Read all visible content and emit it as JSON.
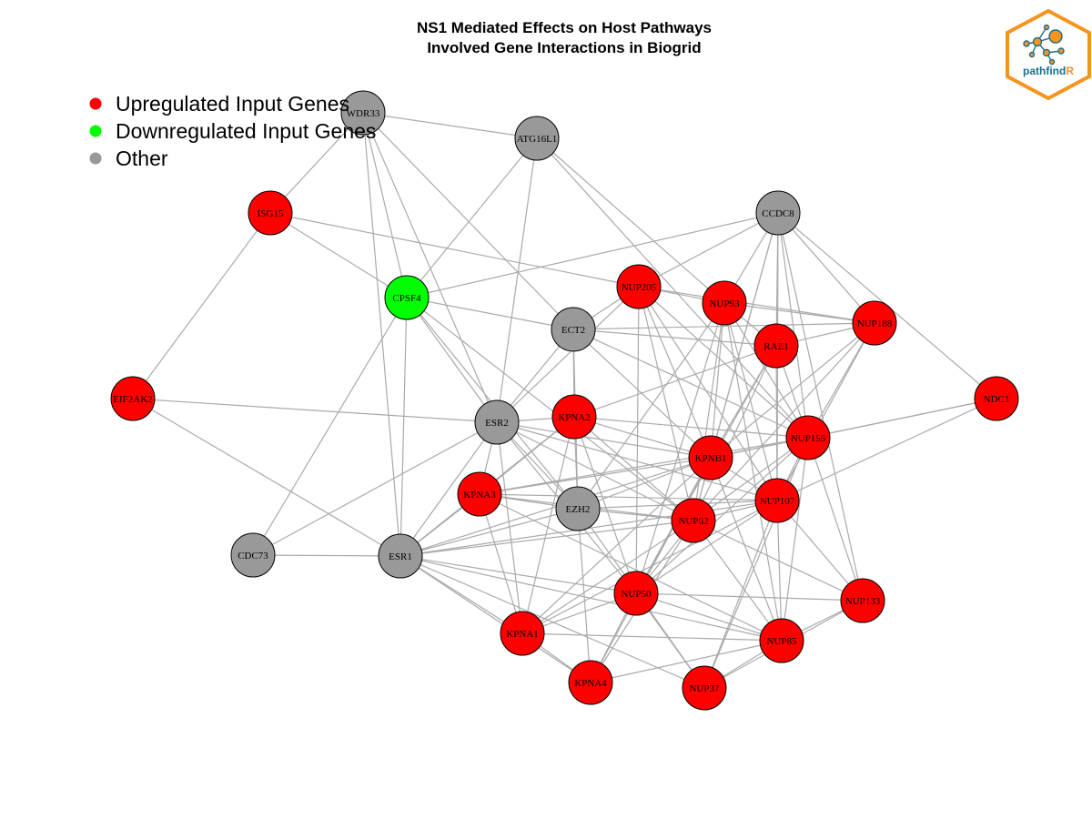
{
  "title": {
    "line1": "NS1 Mediated Effects on Host Pathways",
    "line2": "Involved Gene Interactions in Biogrid"
  },
  "legend": [
    {
      "label": "Upregulated Input Genes",
      "color": "#ff0000"
    },
    {
      "label": "Downregulated Input Genes",
      "color": "#00ff00"
    },
    {
      "label": "Other",
      "color": "#999999"
    }
  ],
  "logo": {
    "text_main": "pathfind",
    "text_accent": "R",
    "border_color": "#f7941d",
    "text_color": "#1b6e8c"
  },
  "edge_color": "#aaaaaa",
  "nodes": [
    {
      "id": "WDR33",
      "status": "other"
    },
    {
      "id": "ATG16L1",
      "status": "other"
    },
    {
      "id": "ISG15",
      "status": "up"
    },
    {
      "id": "CCDC8",
      "status": "other"
    },
    {
      "id": "CPSF4",
      "status": "down"
    },
    {
      "id": "NUP205",
      "status": "up"
    },
    {
      "id": "NUP93",
      "status": "up"
    },
    {
      "id": "NUP188",
      "status": "up"
    },
    {
      "id": "ECT2",
      "status": "other"
    },
    {
      "id": "RAE1",
      "status": "up"
    },
    {
      "id": "EIF2AK2",
      "status": "up"
    },
    {
      "id": "NDC1",
      "status": "up"
    },
    {
      "id": "ESR2",
      "status": "other"
    },
    {
      "id": "KPNA2",
      "status": "up"
    },
    {
      "id": "NUP155",
      "status": "up"
    },
    {
      "id": "KPNB1",
      "status": "up"
    },
    {
      "id": "KPNA3",
      "status": "up"
    },
    {
      "id": "EZH2",
      "status": "other"
    },
    {
      "id": "NUP107",
      "status": "up"
    },
    {
      "id": "NUP62",
      "status": "up"
    },
    {
      "id": "CDC73",
      "status": "other"
    },
    {
      "id": "ESR1",
      "status": "other"
    },
    {
      "id": "NUP50",
      "status": "up"
    },
    {
      "id": "NUP133",
      "status": "up"
    },
    {
      "id": "KPNA1",
      "status": "up"
    },
    {
      "id": "NUP85",
      "status": "up"
    },
    {
      "id": "KPNA4",
      "status": "up"
    },
    {
      "id": "NUP37",
      "status": "up"
    }
  ],
  "edges": [
    [
      "WDR33",
      "ATG16L1"
    ],
    [
      "WDR33",
      "ISG15"
    ],
    [
      "WDR33",
      "CPSF4"
    ],
    [
      "WDR33",
      "ESR2"
    ],
    [
      "WDR33",
      "ECT2"
    ],
    [
      "WDR33",
      "ESR1"
    ],
    [
      "ATG16L1",
      "CPSF4"
    ],
    [
      "ATG16L1",
      "ESR2"
    ],
    [
      "ATG16L1",
      "NUP93"
    ],
    [
      "ATG16L1",
      "NUP155"
    ],
    [
      "ISG15",
      "CPSF4"
    ],
    [
      "ISG15",
      "NUP205"
    ],
    [
      "ISG15",
      "EIF2AK2"
    ],
    [
      "CCDC8",
      "CPSF4"
    ],
    [
      "CCDC8",
      "NUP205"
    ],
    [
      "CCDC8",
      "NUP93"
    ],
    [
      "CCDC8",
      "NUP188"
    ],
    [
      "CCDC8",
      "RAE1"
    ],
    [
      "CCDC8",
      "NDC1"
    ],
    [
      "CCDC8",
      "NUP155"
    ],
    [
      "CCDC8",
      "KPNB1"
    ],
    [
      "CCDC8",
      "NUP107"
    ],
    [
      "CCDC8",
      "NUP62"
    ],
    [
      "CCDC8",
      "NUP133"
    ],
    [
      "CPSF4",
      "ECT2"
    ],
    [
      "CPSF4",
      "ESR2"
    ],
    [
      "CPSF4",
      "EZH2"
    ],
    [
      "CPSF4",
      "CDC73"
    ],
    [
      "CPSF4",
      "NUP62"
    ],
    [
      "CPSF4",
      "ESR1"
    ],
    [
      "NUP205",
      "NUP93"
    ],
    [
      "NUP205",
      "ECT2"
    ],
    [
      "NUP205",
      "NUP188"
    ],
    [
      "NUP205",
      "NUP155"
    ],
    [
      "NUP205",
      "NUP107"
    ],
    [
      "NUP205",
      "KPNB1"
    ],
    [
      "NUP205",
      "NUP62"
    ],
    [
      "NUP205",
      "NUP50"
    ],
    [
      "NUP205",
      "ESR2"
    ],
    [
      "NUP93",
      "NUP188"
    ],
    [
      "NUP93",
      "RAE1"
    ],
    [
      "NUP93",
      "NUP155"
    ],
    [
      "NUP93",
      "KPNB1"
    ],
    [
      "NUP93",
      "NUP107"
    ],
    [
      "NUP93",
      "NUP62"
    ],
    [
      "NUP93",
      "NUP50"
    ],
    [
      "NUP93",
      "NUP85"
    ],
    [
      "NUP93",
      "EZH2"
    ],
    [
      "NUP188",
      "RAE1"
    ],
    [
      "NUP188",
      "ECT2"
    ],
    [
      "NUP188",
      "KPNB1"
    ],
    [
      "NUP188",
      "NUP155"
    ],
    [
      "NUP188",
      "NUP107"
    ],
    [
      "NUP188",
      "NUP62"
    ],
    [
      "ECT2",
      "RAE1"
    ],
    [
      "ECT2",
      "ESR2"
    ],
    [
      "ECT2",
      "KPNA2"
    ],
    [
      "ECT2",
      "KPNB1"
    ],
    [
      "ECT2",
      "EZH2"
    ],
    [
      "ECT2",
      "NUP155"
    ],
    [
      "RAE1",
      "KPNB1"
    ],
    [
      "RAE1",
      "NUP155"
    ],
    [
      "RAE1",
      "NUP107"
    ],
    [
      "RAE1",
      "NUP62"
    ],
    [
      "RAE1",
      "NUP50"
    ],
    [
      "RAE1",
      "KPNA2"
    ],
    [
      "EIF2AK2",
      "ESR2"
    ],
    [
      "EIF2AK2",
      "ESR1"
    ],
    [
      "NDC1",
      "NUP155"
    ],
    [
      "NDC1",
      "NUP107"
    ],
    [
      "NDC1",
      "KPNB1"
    ],
    [
      "ESR2",
      "KPNA2"
    ],
    [
      "ESR2",
      "KPNA3"
    ],
    [
      "ESR2",
      "EZH2"
    ],
    [
      "ESR2",
      "ESR1"
    ],
    [
      "ESR2",
      "CDC73"
    ],
    [
      "ESR2",
      "NUP62"
    ],
    [
      "ESR2",
      "KPNB1"
    ],
    [
      "ESR2",
      "NUP107"
    ],
    [
      "ESR2",
      "KPNA1"
    ],
    [
      "ESR2",
      "NUP50"
    ],
    [
      "KPNA2",
      "KPNB1"
    ],
    [
      "KPNA2",
      "KPNA3"
    ],
    [
      "KPNA2",
      "EZH2"
    ],
    [
      "KPNA2",
      "NUP155"
    ],
    [
      "KPNA2",
      "NUP62"
    ],
    [
      "KPNA2",
      "ESR1"
    ],
    [
      "KPNA2",
      "KPNA1"
    ],
    [
      "KPNA2",
      "NUP50"
    ],
    [
      "NUP155",
      "KPNB1"
    ],
    [
      "NUP155",
      "NUP107"
    ],
    [
      "NUP155",
      "NUP62"
    ],
    [
      "NUP155",
      "NUP50"
    ],
    [
      "NUP155",
      "NUP133"
    ],
    [
      "NUP155",
      "NUP85"
    ],
    [
      "NUP155",
      "NUP37"
    ],
    [
      "NUP155",
      "KPNA3"
    ],
    [
      "KPNB1",
      "KPNA3"
    ],
    [
      "KPNB1",
      "EZH2"
    ],
    [
      "KPNB1",
      "NUP107"
    ],
    [
      "KPNB1",
      "NUP62"
    ],
    [
      "KPNB1",
      "NUP50"
    ],
    [
      "KPNB1",
      "NUP85"
    ],
    [
      "KPNB1",
      "ESR1"
    ],
    [
      "KPNB1",
      "KPNA1"
    ],
    [
      "KPNB1",
      "KPNA4"
    ],
    [
      "KPNA3",
      "EZH2"
    ],
    [
      "KPNA3",
      "NUP62"
    ],
    [
      "KPNA3",
      "NUP107"
    ],
    [
      "KPNA3",
      "ESR1"
    ],
    [
      "KPNA3",
      "KPNA1"
    ],
    [
      "KPNA3",
      "NUP85"
    ],
    [
      "EZH2",
      "NUP107"
    ],
    [
      "EZH2",
      "NUP62"
    ],
    [
      "EZH2",
      "KPNA4"
    ],
    [
      "EZH2",
      "ESR1"
    ],
    [
      "EZH2",
      "NUP37"
    ],
    [
      "NUP107",
      "NUP62"
    ],
    [
      "NUP107",
      "NUP50"
    ],
    [
      "NUP107",
      "NUP133"
    ],
    [
      "NUP107",
      "NUP85"
    ],
    [
      "NUP107",
      "NUP37"
    ],
    [
      "NUP107",
      "ESR1"
    ],
    [
      "NUP107",
      "KPNA1"
    ],
    [
      "NUP62",
      "NUP50"
    ],
    [
      "NUP62",
      "NUP85"
    ],
    [
      "NUP62",
      "ESR1"
    ],
    [
      "NUP62",
      "KPNA1"
    ],
    [
      "NUP62",
      "KPNA4"
    ],
    [
      "NUP62",
      "NUP133"
    ],
    [
      "CDC73",
      "ESR1"
    ],
    [
      "ESR1",
      "NUP50"
    ],
    [
      "ESR1",
      "KPNA1"
    ],
    [
      "ESR1",
      "KPNA4"
    ],
    [
      "ESR1",
      "NUP37"
    ],
    [
      "ESR1",
      "NUP85"
    ],
    [
      "NUP50",
      "NUP133"
    ],
    [
      "NUP50",
      "KPNA1"
    ],
    [
      "NUP50",
      "NUP85"
    ],
    [
      "NUP50",
      "KPNA4"
    ],
    [
      "NUP50",
      "NUP37"
    ],
    [
      "NUP133",
      "NUP85"
    ],
    [
      "NUP133",
      "NUP37"
    ],
    [
      "KPNA1",
      "NUP85"
    ],
    [
      "KPNA1",
      "KPNA4"
    ],
    [
      "NUP85",
      "NUP37"
    ],
    [
      "NUP85",
      "KPNA4"
    ]
  ]
}
